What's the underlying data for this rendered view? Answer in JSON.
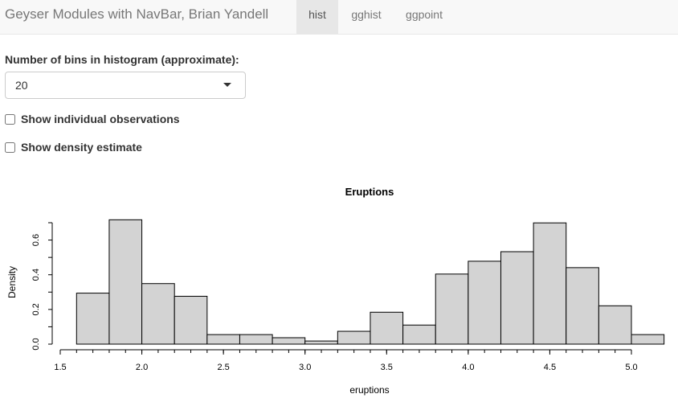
{
  "navbar": {
    "brand": "Geyser Modules with NavBar, Brian Yandell",
    "tabs": [
      {
        "label": "hist",
        "active": true
      },
      {
        "label": "gghist",
        "active": false
      },
      {
        "label": "ggpoint",
        "active": false
      }
    ]
  },
  "controls": {
    "bins_label": "Number of bins in histogram (approximate):",
    "bins_value": "20",
    "show_obs_label": "Show individual observations",
    "show_obs_checked": false,
    "show_density_label": "Show density estimate",
    "show_density_checked": false
  },
  "colors": {
    "bar_fill": "#d3d3d3",
    "navbar_bg": "#f8f8f8",
    "active_tab_bg": "#e7e7e7"
  },
  "chart_data": {
    "type": "bar",
    "title": "Eruptions",
    "xlabel": "eruptions",
    "ylabel": "Density",
    "bin_edges": [
      1.6,
      1.8,
      2.0,
      2.2,
      2.4,
      2.6,
      2.8,
      3.0,
      3.2,
      3.4,
      3.6,
      3.8,
      4.0,
      4.2,
      4.4,
      4.6,
      4.8,
      5.0,
      5.2
    ],
    "values": [
      0.294,
      0.717,
      0.349,
      0.276,
      0.055,
      0.055,
      0.037,
      0.018,
      0.074,
      0.184,
      0.11,
      0.404,
      0.478,
      0.533,
      0.699,
      0.441,
      0.221,
      0.055
    ],
    "xlim": [
      1.5,
      5.2
    ],
    "ylim": [
      0,
      0.7
    ],
    "x_ticks": [
      "1.5",
      "2.0",
      "2.5",
      "3.0",
      "3.5",
      "4.0",
      "4.5",
      "5.0"
    ],
    "y_ticks": [
      "0.0",
      "0.2",
      "0.4",
      "0.6"
    ],
    "grid": false
  }
}
